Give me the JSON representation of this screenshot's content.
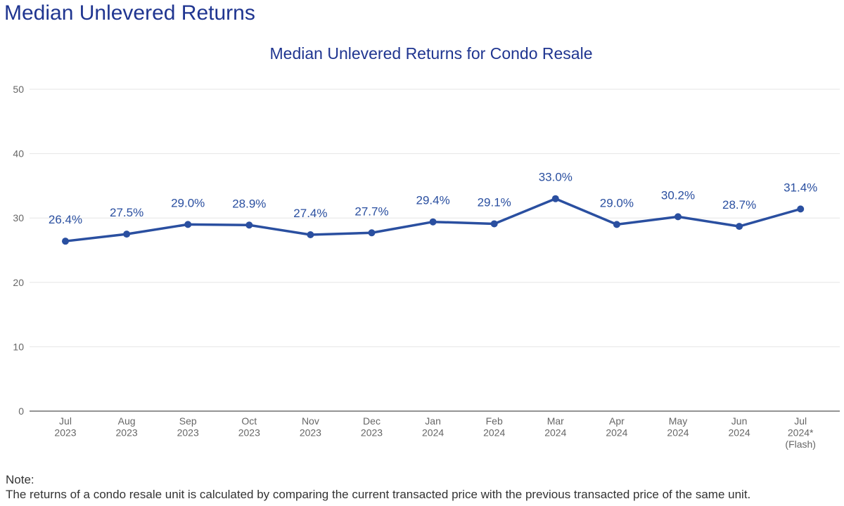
{
  "page_title": "Median Unlevered Returns",
  "note": {
    "label": "Note:",
    "text": "The returns of a condo resale unit is calculated by comparing the current transacted price with the previous transacted price of the same unit."
  },
  "colors": {
    "series": "#2a4fa0",
    "title": "#1f3590",
    "grid": "#e6e6e6",
    "axis_text": "#666666"
  },
  "chart_data": {
    "type": "line",
    "title": "Median Unlevered Returns for Condo Resale",
    "xlabel": "",
    "ylabel": "",
    "ylim": [
      0,
      50
    ],
    "yticks": [
      0,
      10,
      20,
      30,
      40,
      50
    ],
    "grid": true,
    "categories": [
      [
        "Jul",
        "2023"
      ],
      [
        "Aug",
        "2023"
      ],
      [
        "Sep",
        "2023"
      ],
      [
        "Oct",
        "2023"
      ],
      [
        "Nov",
        "2023"
      ],
      [
        "Dec",
        "2023"
      ],
      [
        "Jan",
        "2024"
      ],
      [
        "Feb",
        "2024"
      ],
      [
        "Mar",
        "2024"
      ],
      [
        "Apr",
        "2024"
      ],
      [
        "May",
        "2024"
      ],
      [
        "Jun",
        "2024"
      ],
      [
        "Jul",
        "2024*",
        "(Flash)"
      ]
    ],
    "series": [
      {
        "values": [
          26.4,
          27.5,
          29.0,
          28.9,
          27.4,
          27.7,
          29.4,
          29.1,
          33.0,
          29.0,
          30.2,
          28.7,
          31.4
        ],
        "labels": [
          "26.4%",
          "27.5%",
          "29.0%",
          "28.9%",
          "27.4%",
          "27.7%",
          "29.4%",
          "29.1%",
          "33.0%",
          "29.0%",
          "30.2%",
          "28.7%",
          "31.4%"
        ]
      }
    ]
  }
}
